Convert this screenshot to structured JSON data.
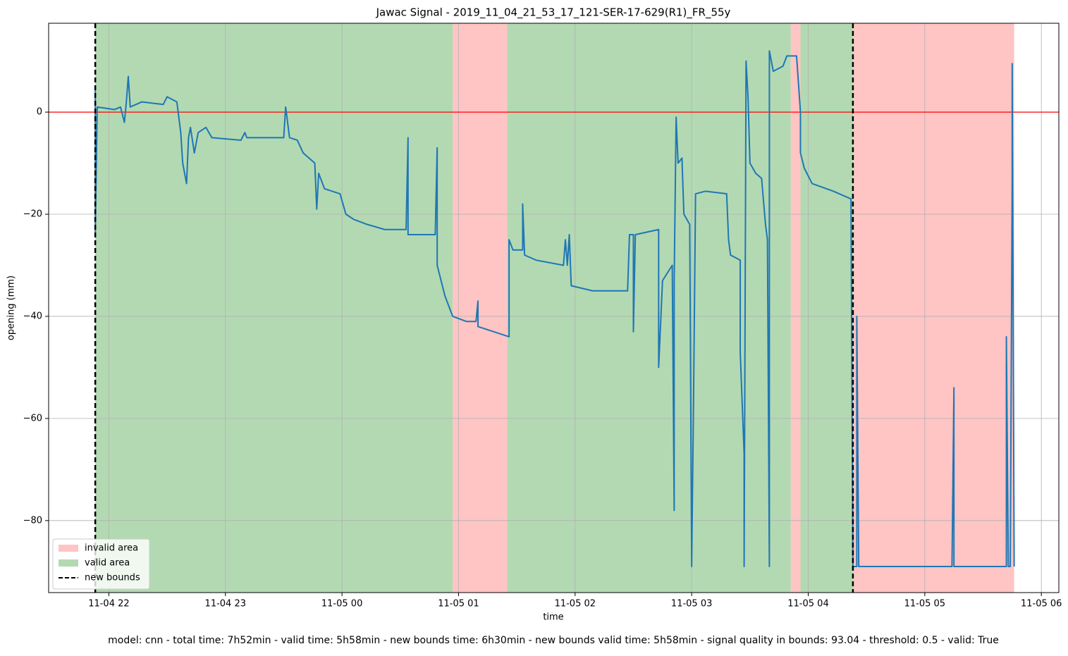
{
  "chart_data": {
    "type": "line",
    "title": "Jawac Signal - 2019_11_04_21_53_17_121-SER-17-629(R1)_FR_55y",
    "xlabel": "time",
    "ylabel": "opening (mm)",
    "caption": "model: cnn - total time: 7h52min - valid time: 5h58min - new bounds time: 6h30min - new bounds valid time: 5h58min - signal quality in bounds: 93.04 - threshold: 0.5 - valid: True",
    "color": "#1f77b4",
    "x": [
      "11-04 21:53",
      "11-04 21:53",
      "11-04 21:54",
      "11-04 22:03",
      "11-04 22:06",
      "11-04 22:08",
      "11-04 22:09",
      "11-04 22:10",
      "11-04 22:11",
      "11-04 22:17",
      "11-04 22:28",
      "11-04 22:30",
      "11-04 22:35",
      "11-04 22:37",
      "11-04 22:38",
      "11-04 22:40",
      "11-04 22:41",
      "11-04 22:42",
      "11-04 22:44",
      "11-04 22:46",
      "11-04 22:50",
      "11-04 22:53",
      "11-04 23:08",
      "11-04 23:10",
      "11-04 23:11",
      "11-04 23:30",
      "11-04 23:31",
      "11-04 23:33",
      "11-04 23:37",
      "11-04 23:40",
      "11-04 23:46",
      "11-04 23:47",
      "11-04 23:48",
      "11-04 23:51",
      "11-04 23:59",
      "11-05 00:02",
      "11-05 00:06",
      "11-05 00:13",
      "11-05 00:22",
      "11-05 00:33",
      "11-05 00:34",
      "11-05 00:34",
      "11-05 00:42",
      "11-05 00:48",
      "11-05 00:49",
      "11-05 00:49",
      "11-05 00:53",
      "11-05 00:57",
      "11-05 01:04",
      "11-05 01:09",
      "11-05 01:10",
      "11-05 01:10",
      "11-05 01:18",
      "11-05 01:26",
      "11-05 01:26",
      "11-05 01:28",
      "11-05 01:33",
      "11-05 01:33",
      "11-05 01:34",
      "11-05 01:40",
      "11-05 01:54",
      "11-05 01:55",
      "11-05 01:56",
      "11-05 01:57",
      "11-05 01:58",
      "11-05 02:09",
      "11-05 02:27",
      "11-05 02:28",
      "11-05 02:30",
      "11-05 02:30",
      "11-05 02:31",
      "11-05 02:43",
      "11-05 02:43",
      "11-05 02:45",
      "11-05 02:50",
      "11-05 02:51",
      "11-05 02:51",
      "11-05 02:52",
      "11-05 02:53",
      "11-05 02:55",
      "11-05 02:56",
      "11-05 02:59",
      "11-05 03:00",
      "11-05 03:01",
      "11-05 03:02",
      "11-05 03:07",
      "11-05 03:18",
      "11-05 03:19",
      "11-05 03:20",
      "11-05 03:25",
      "11-05 03:25",
      "11-05 03:27",
      "11-05 03:27",
      "11-05 03:28",
      "11-05 03:29",
      "11-05 03:30",
      "11-05 03:33",
      "11-05 03:36",
      "11-05 03:38",
      "11-05 03:39",
      "11-05 03:40",
      "11-05 03:40",
      "11-05 03:42",
      "11-05 03:47",
      "11-05 03:49",
      "11-05 03:54",
      "11-05 03:56",
      "11-05 03:56",
      "11-05 03:58",
      "11-05 04:02",
      "11-05 04:13",
      "11-05 04:22",
      "11-05 04:23",
      "11-05 04:25",
      "11-05 04:25",
      "11-05 04:26",
      "11-05 05:14",
      "11-05 05:15",
      "11-05 05:15",
      "11-05 05:42",
      "11-05 05:42",
      "11-05 05:43",
      "11-05 05:44",
      "11-05 05:45",
      "11-05 05:45",
      "11-05 05:46"
    ],
    "values": [
      5,
      -24,
      1,
      0.5,
      1,
      -2,
      2,
      7,
      1,
      2,
      1.5,
      3,
      2,
      -4,
      -10,
      -14,
      -5,
      -3,
      -8,
      -4,
      -3,
      -5,
      -5.5,
      -4,
      -5,
      -5,
      1,
      -5,
      -5.5,
      -8,
      -10,
      -19,
      -12,
      -15,
      -16,
      -20,
      -21,
      -22,
      -23,
      -23,
      -5,
      -24,
      -24,
      -24,
      -7,
      -30,
      -36,
      -40,
      -41,
      -41,
      -37,
      -42,
      -43,
      -44,
      -25,
      -27,
      -27,
      -18,
      -28,
      -29,
      -30,
      -25,
      -30,
      -24,
      -34,
      -35,
      -35,
      -24,
      -24,
      -43,
      -24,
      -23,
      -50,
      -33,
      -30,
      -78,
      -33,
      -1,
      -10,
      -9,
      -20,
      -22,
      -89,
      -55,
      -16,
      -15.5,
      -16,
      -25,
      -28,
      -29,
      -47,
      -67,
      -89,
      10,
      3,
      -10,
      -12,
      -13,
      -22,
      -25,
      -89,
      12,
      8,
      9,
      11,
      11,
      0,
      -8,
      -11,
      -14,
      -15.5,
      -17,
      -89,
      -89,
      -40,
      -89,
      -89,
      -54,
      -89,
      -89,
      -44,
      -89,
      -89,
      -13,
      9.5,
      -89
    ],
    "areas": [
      {
        "name": "invalid area",
        "color": "#ffc4c4",
        "spans": [
          [
            "11-05 00:57",
            "11-05 01:25"
          ],
          [
            "11-05 03:51",
            "11-05 03:56"
          ],
          [
            "11-05 04:23",
            "11-05 05:46"
          ]
        ]
      },
      {
        "name": "valid area",
        "color": "#b3d9b3",
        "spans": [
          [
            "11-04 21:53",
            "11-05 00:57"
          ],
          [
            "11-05 01:25",
            "11-05 03:51"
          ],
          [
            "11-05 03:56",
            "11-05 04:23"
          ]
        ]
      }
    ],
    "bounds": {
      "name": "new bounds",
      "color": "#000000",
      "x": [
        "11-04 21:53",
        "11-05 04:23"
      ]
    },
    "hline": {
      "value": 0,
      "color": "#ff0000"
    },
    "xlim": [
      "11-04 21:29",
      "11-05 06:09"
    ],
    "xticks": [
      "11-04 22",
      "11-04 23",
      "11-05 00",
      "11-05 01",
      "11-05 02",
      "11-05 03",
      "11-05 04",
      "11-05 05",
      "11-05 06"
    ],
    "ylim": [
      -94.1,
      17.4
    ],
    "yticks": [
      0,
      {
        "value": -20,
        "label": "−20"
      },
      {
        "value": -40,
        "label": "−40"
      },
      {
        "value": -60,
        "label": "−60"
      },
      {
        "value": -80,
        "label": "−80"
      }
    ],
    "grid": true,
    "legend": "lower left"
  }
}
